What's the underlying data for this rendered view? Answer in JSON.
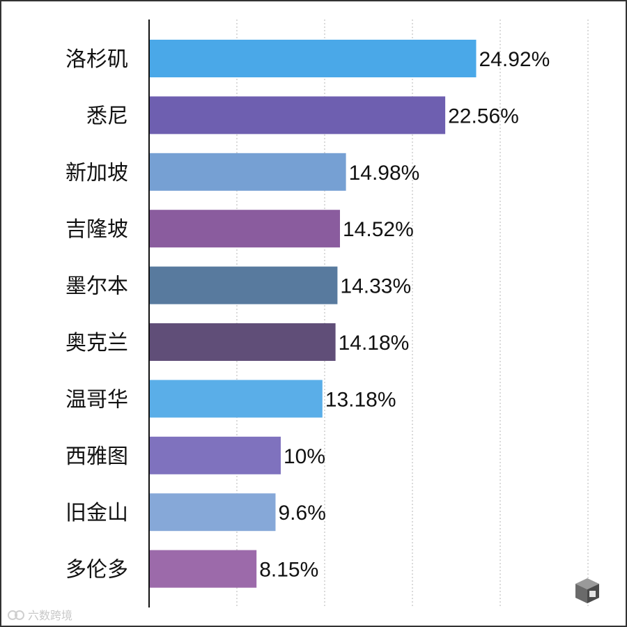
{
  "chart_data": {
    "type": "bar",
    "orientation": "horizontal",
    "title": "",
    "xlabel": "",
    "ylabel": "",
    "xlim": [
      0,
      35
    ],
    "grid": true,
    "legend": "none",
    "categories": [
      "洛杉矶",
      "悉尼",
      "新加坡",
      "吉隆坡",
      "墨尔本",
      "奥克兰",
      "温哥华",
      "西雅图",
      "旧金山",
      "多伦多"
    ],
    "values": [
      24.92,
      22.56,
      14.98,
      14.52,
      14.33,
      14.18,
      13.18,
      10,
      9.6,
      8.15
    ],
    "value_labels": [
      "24.92%",
      "22.56%",
      "14.98%",
      "14.52%",
      "14.33%",
      "14.18%",
      "13.18%",
      "10%",
      "9.6%",
      "8.15%"
    ],
    "colors": [
      "#4aa8e8",
      "#6e5fb0",
      "#76a0d3",
      "#8a5c9e",
      "#587a9e",
      "#604e78",
      "#5aaee8",
      "#7f72be",
      "#86a8d8",
      "#9c6aaa"
    ]
  },
  "watermark": {
    "text": "六数跨境"
  }
}
